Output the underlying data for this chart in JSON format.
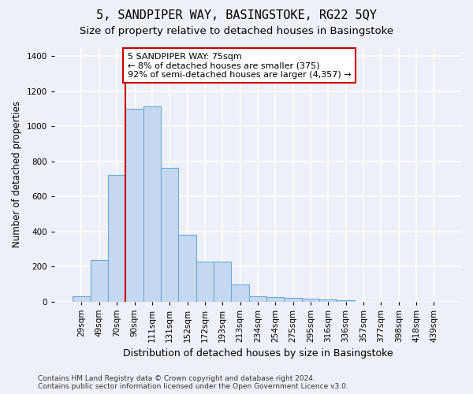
{
  "title": "5, SANDPIPER WAY, BASINGSTOKE, RG22 5QY",
  "subtitle": "Size of property relative to detached houses in Basingstoke",
  "xlabel": "Distribution of detached houses by size in Basingstoke",
  "ylabel": "Number of detached properties",
  "footer_line1": "Contains HM Land Registry data © Crown copyright and database right 2024.",
  "footer_line2": "Contains public sector information licensed under the Open Government Licence v3.0.",
  "bar_labels": [
    "29sqm",
    "49sqm",
    "70sqm",
    "90sqm",
    "111sqm",
    "131sqm",
    "152sqm",
    "172sqm",
    "193sqm",
    "213sqm",
    "234sqm",
    "254sqm",
    "275sqm",
    "295sqm",
    "316sqm",
    "336sqm",
    "357sqm",
    "377sqm",
    "398sqm",
    "418sqm",
    "439sqm"
  ],
  "bar_values": [
    30,
    235,
    720,
    1100,
    1115,
    760,
    380,
    225,
    225,
    95,
    30,
    25,
    22,
    15,
    10,
    8,
    0,
    0,
    0,
    0,
    0
  ],
  "bar_color": "#c5d8f0",
  "bar_edge_color": "#6aaad4",
  "vline_x": 2.5,
  "vline_color": "#cc0000",
  "annotation_text": "5 SANDPIPER WAY: 75sqm\n← 8% of detached houses are smaller (375)\n92% of semi-detached houses are larger (4,357) →",
  "annotation_box_color": "#ffffff",
  "annotation_box_edge": "#cc0000",
  "ylim": [
    0,
    1450
  ],
  "yticks": [
    0,
    200,
    400,
    600,
    800,
    1000,
    1200,
    1400
  ],
  "background_color": "#edf0f8",
  "grid_color": "#ffffff",
  "title_fontsize": 11,
  "subtitle_fontsize": 9.5,
  "xlabel_fontsize": 9,
  "ylabel_fontsize": 8.5,
  "tick_fontsize": 7.5,
  "annotation_fontsize": 8,
  "footer_fontsize": 6.5
}
